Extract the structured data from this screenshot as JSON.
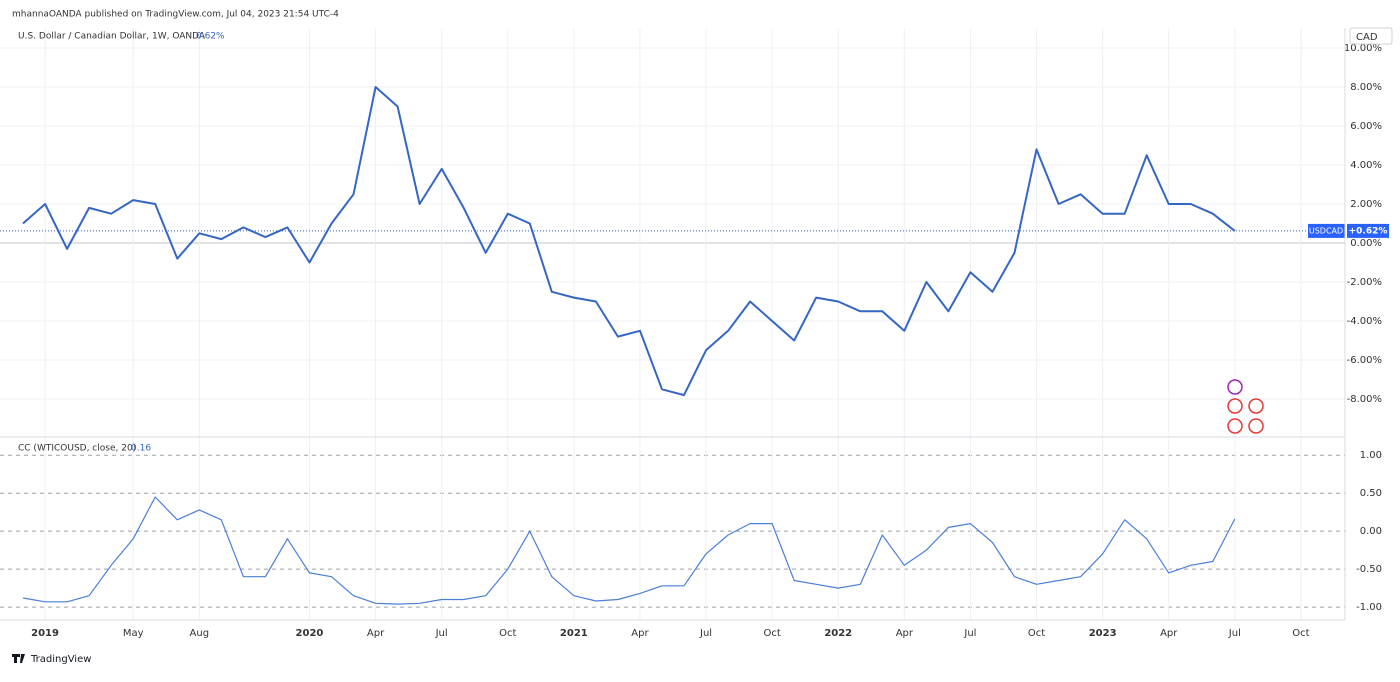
{
  "header": "mhannaOANDA published on TradingView.com, Jul 04, 2023 21:54 UTC-4",
  "footer": "TradingView",
  "chart_data": [
    {
      "type": "line",
      "current_label": "0.62%",
      "symbol": "USDCAD",
      "price_tag": "+0.62%",
      "currency": "CAD",
      "x": [
        "2018-12",
        "2019-01",
        "2019-02",
        "2019-03",
        "2019-04",
        "2019-05",
        "2019-06",
        "2019-07",
        "2019-08",
        "2019-09",
        "2019-10",
        "2019-11",
        "2019-12",
        "2020-01",
        "2020-02",
        "2020-03",
        "2020-04",
        "2020-05",
        "2020-06",
        "2020-07",
        "2020-08",
        "2020-09",
        "2020-10",
        "2020-11",
        "2020-12",
        "2021-01",
        "2021-02",
        "2021-03",
        "2021-04",
        "2021-05",
        "2021-06",
        "2021-07",
        "2021-08",
        "2021-09",
        "2021-10",
        "2021-11",
        "2021-12",
        "2022-01",
        "2022-02",
        "2022-03",
        "2022-04",
        "2022-05",
        "2022-06",
        "2022-07",
        "2022-08",
        "2022-09",
        "2022-10",
        "2022-11",
        "2022-12",
        "2023-01",
        "2023-02",
        "2023-03",
        "2023-04",
        "2023-05",
        "2023-06",
        "2023-07"
      ],
      "series": [
        {
          "name": "U.S. Dollar / Canadian Dollar, 1W, OANDA",
          "color": "#3566c4",
          "values": [
            1.0,
            2.0,
            -0.3,
            1.8,
            1.5,
            2.2,
            2.0,
            -0.8,
            0.5,
            0.2,
            0.8,
            0.3,
            0.8,
            -1.0,
            1.0,
            2.5,
            8.0,
            7.0,
            2.0,
            3.8,
            1.8,
            -0.5,
            1.5,
            1.0,
            -2.5,
            -2.8,
            -3.0,
            -4.8,
            -4.5,
            -7.5,
            -7.8,
            -5.5,
            -4.5,
            -3.0,
            -4.0,
            -5.0,
            -2.8,
            -3.0,
            -3.5,
            -3.5,
            -4.5,
            -2.0,
            -3.5,
            -1.5,
            -2.5,
            -0.5,
            4.8,
            2.0,
            2.5,
            1.5,
            1.5,
            4.5,
            2.0,
            2.0,
            1.5,
            0.62
          ]
        }
      ],
      "xlim": [
        "2018-11",
        "2023-12"
      ],
      "ylim": [
        -10,
        11
      ],
      "yticks": [
        {
          "value": -8,
          "label": "-8.00%"
        },
        {
          "value": -6,
          "label": "-6.00%"
        },
        {
          "value": -4,
          "label": "-4.00%"
        },
        {
          "value": -2,
          "label": "-2.00%"
        },
        {
          "value": 0,
          "label": "0.00%"
        },
        {
          "value": 2,
          "label": "2.00%"
        },
        {
          "value": 4,
          "label": "4.00%"
        },
        {
          "value": 6,
          "label": "6.00%"
        },
        {
          "value": 8,
          "label": "8.00%"
        },
        {
          "value": 10,
          "label": "10.00%"
        }
      ],
      "grid": true
    },
    {
      "type": "line",
      "x": [
        "2018-12",
        "2019-01",
        "2019-02",
        "2019-03",
        "2019-04",
        "2019-05",
        "2019-06",
        "2019-07",
        "2019-08",
        "2019-09",
        "2019-10",
        "2019-11",
        "2019-12",
        "2020-01",
        "2020-02",
        "2020-03",
        "2020-04",
        "2020-05",
        "2020-06",
        "2020-07",
        "2020-08",
        "2020-09",
        "2020-10",
        "2020-11",
        "2020-12",
        "2021-01",
        "2021-02",
        "2021-03",
        "2021-04",
        "2021-05",
        "2021-06",
        "2021-07",
        "2021-08",
        "2021-09",
        "2021-10",
        "2021-11",
        "2021-12",
        "2022-01",
        "2022-02",
        "2022-03",
        "2022-04",
        "2022-05",
        "2022-06",
        "2022-07",
        "2022-08",
        "2022-09",
        "2022-10",
        "2022-11",
        "2022-12",
        "2023-01",
        "2023-02",
        "2023-03",
        "2023-04",
        "2023-05",
        "2023-06",
        "2023-07"
      ],
      "series": [
        {
          "name": "CC (WTICOUSD, close, 20)",
          "color": "#4a7fd8",
          "values": [
            -0.88,
            -0.93,
            -0.93,
            -0.85,
            -0.45,
            -0.1,
            0.45,
            0.15,
            0.28,
            0.15,
            -0.6,
            -0.6,
            -0.1,
            -0.55,
            -0.6,
            -0.85,
            -0.95,
            -0.96,
            -0.95,
            -0.9,
            -0.9,
            -0.85,
            -0.5,
            0.0,
            -0.6,
            -0.85,
            -0.92,
            -0.9,
            -0.82,
            -0.72,
            -0.72,
            -0.3,
            -0.05,
            0.1,
            0.1,
            -0.65,
            -0.7,
            -0.75,
            -0.7,
            -0.05,
            -0.45,
            -0.25,
            0.05,
            0.1,
            -0.15,
            -0.6,
            -0.7,
            -0.65,
            -0.6,
            -0.3,
            0.15,
            -0.1,
            -0.55,
            -0.45,
            -0.4,
            0.16
          ]
        }
      ],
      "xlim": [
        "2018-11",
        "2023-12"
      ],
      "ylim": [
        -1.17,
        1.24
      ],
      "yticks": [
        {
          "value": -1,
          "label": "-1.00"
        },
        {
          "value": -0.5,
          "label": "-0.50"
        },
        {
          "value": 0,
          "label": "0.00"
        },
        {
          "value": 0.5,
          "label": "0.50"
        },
        {
          "value": 1,
          "label": "1.00"
        }
      ],
      "xticks": [
        {
          "value": "2019-01",
          "label": "2019"
        },
        {
          "value": "2019-05",
          "label": "May"
        },
        {
          "value": "2019-08",
          "label": "Aug"
        },
        {
          "value": "2020-01",
          "label": "2020"
        },
        {
          "value": "2020-04",
          "label": "Apr"
        },
        {
          "value": "2020-07",
          "label": "Jul"
        },
        {
          "value": "2020-10",
          "label": "Oct"
        },
        {
          "value": "2021-01",
          "label": "2021"
        },
        {
          "value": "2021-04",
          "label": "Apr"
        },
        {
          "value": "2021-07",
          "label": "Jul"
        },
        {
          "value": "2021-10",
          "label": "Oct"
        },
        {
          "value": "2022-01",
          "label": "2022"
        },
        {
          "value": "2022-04",
          "label": "Apr"
        },
        {
          "value": "2022-07",
          "label": "Jul"
        },
        {
          "value": "2022-10",
          "label": "Oct"
        },
        {
          "value": "2023-01",
          "label": "2023"
        },
        {
          "value": "2023-04",
          "label": "Apr"
        },
        {
          "value": "2023-07",
          "label": "Jul"
        },
        {
          "value": "2023-10",
          "label": "Oct"
        }
      ],
      "grid": true
    }
  ]
}
